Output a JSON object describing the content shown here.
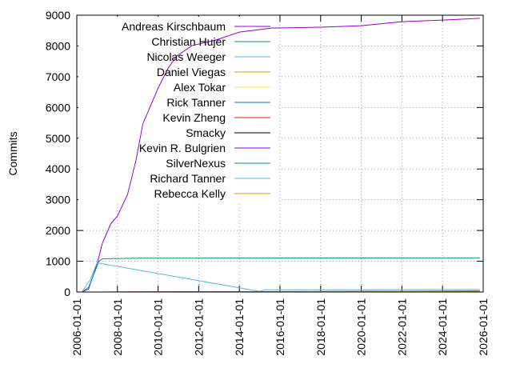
{
  "chart_data": {
    "type": "line",
    "ylabel": "Commits",
    "xlim": [
      "2006-01-01",
      "2026-01-01"
    ],
    "xticks": [
      "2006-01-01",
      "2008-01-01",
      "2010-01-01",
      "2012-01-01",
      "2014-01-01",
      "2016-01-01",
      "2018-01-01",
      "2020-01-01",
      "2022-01-01",
      "2024-01-01",
      "2026-01-01"
    ],
    "ylim": [
      0,
      9000
    ],
    "yticks": [
      0,
      1000,
      2000,
      3000,
      4000,
      5000,
      6000,
      7000,
      8000,
      9000
    ],
    "grid": true,
    "legend": "top-left",
    "series": [
      {
        "name": "Andreas Kirschbaum",
        "color": "#9400d3",
        "x": [
          "2006-04-01",
          "2006-08-01",
          "2007-01-01",
          "2007-04-01",
          "2007-09-01",
          "2008-01-01",
          "2008-07-01",
          "2008-12-01",
          "2009-04-01",
          "2009-09-01",
          "2010-01-01",
          "2010-07-01",
          "2010-12-01",
          "2011-09-01",
          "2012-11-01",
          "2014-01-01",
          "2015-08-01",
          "2018-01-01",
          "2020-01-01",
          "2022-01-01",
          "2024-01-01",
          "2025-11-01"
        ],
        "values": [
          0,
          100,
          910,
          1560,
          2210,
          2470,
          3170,
          4290,
          5460,
          6110,
          6630,
          7280,
          7670,
          8010,
          8190,
          8450,
          8580,
          8610,
          8660,
          8790,
          8840,
          8900
        ]
      },
      {
        "name": "Christian Hujer",
        "color": "#009e73",
        "x": [
          "2006-04-01",
          "2006-08-01",
          "2006-12-01",
          "2007-02-01",
          "2007-04-01",
          "2009-02-01",
          "2025-11-01"
        ],
        "values": [
          0,
          150,
          700,
          1000,
          1080,
          1100,
          1110
        ]
      },
      {
        "name": "Nicolas Weeger",
        "color": "#56b4e9",
        "x": [
          "2006-04-01",
          "2006-09-01",
          "2007-01-01",
          "2015-01-01",
          "2015-04-01",
          "2025-11-01"
        ],
        "values": [
          0,
          400,
          950,
          20,
          70,
          80
        ]
      },
      {
        "name": "Daniel Viegas",
        "color": "#e69f00",
        "x": [
          "2006-04-01",
          "2025-11-01"
        ],
        "values": [
          0,
          20
        ]
      },
      {
        "name": "Alex Tokar",
        "color": "#f0e442",
        "x": [
          "2006-04-01",
          "2025-11-01"
        ],
        "values": [
          0,
          10
        ]
      },
      {
        "name": "Rick Tanner",
        "color": "#0072b2",
        "x": [
          "2006-04-01",
          "2025-11-01"
        ],
        "values": [
          0,
          15
        ]
      },
      {
        "name": "Kevin Zheng",
        "color": "#e51e10",
        "x": [
          "2006-04-01",
          "2025-11-01"
        ],
        "values": [
          0,
          10
        ]
      },
      {
        "name": "Smacky",
        "color": "#000000",
        "x": [
          "2006-04-01",
          "2025-11-01"
        ],
        "values": [
          0,
          5
        ]
      },
      {
        "name": "Kevin R. Bulgrien",
        "color": "#9400d3",
        "x": [
          "2006-04-01",
          "2025-11-01"
        ],
        "values": [
          0,
          30
        ]
      },
      {
        "name": "SilverNexus",
        "color": "#009e73",
        "x": [
          "2015-01-01",
          "2025-11-01"
        ],
        "values": [
          0,
          40
        ]
      },
      {
        "name": "Richard Tanner",
        "color": "#56b4e9",
        "x": [
          "2006-04-01",
          "2025-11-01"
        ],
        "values": [
          0,
          20
        ]
      },
      {
        "name": "Rebecca Kelly",
        "color": "#e69f00",
        "x": [
          "2006-04-01",
          "2025-11-01"
        ],
        "values": [
          0,
          10
        ]
      }
    ]
  }
}
